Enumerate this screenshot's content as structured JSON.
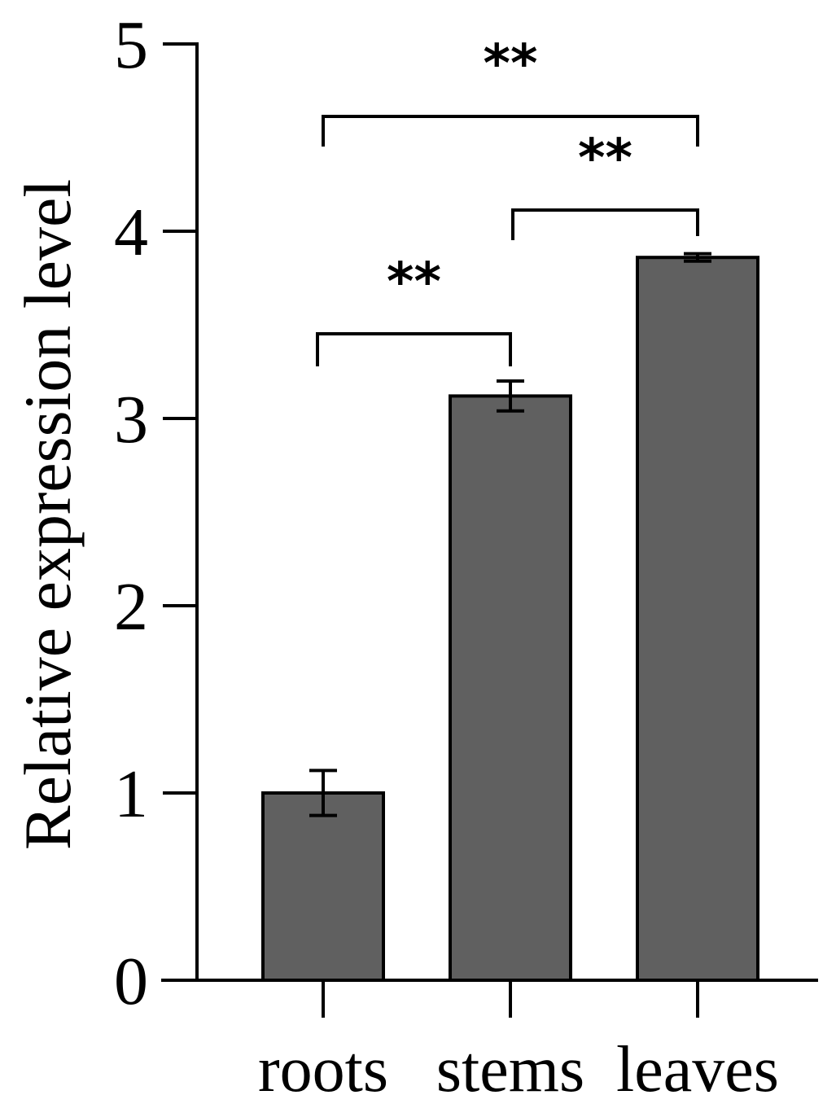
{
  "chart_data": {
    "type": "bar",
    "title": "",
    "xlabel": "",
    "ylabel": "Relative expression level",
    "categories": [
      "roots",
      "stems",
      "leaves"
    ],
    "values": [
      1.0,
      3.12,
      3.86
    ],
    "errors": [
      0.12,
      0.08,
      0.02
    ],
    "ylim": [
      0,
      5
    ],
    "yticks": [
      0,
      1,
      2,
      3,
      4,
      5
    ],
    "bar_color": "#606060",
    "grid": false,
    "legend": "none",
    "significance": [
      {
        "from": "roots",
        "to": "stems",
        "label": "**"
      },
      {
        "from": "stems",
        "to": "leaves",
        "label": "**"
      },
      {
        "from": "roots",
        "to": "leaves",
        "label": "**"
      }
    ]
  }
}
